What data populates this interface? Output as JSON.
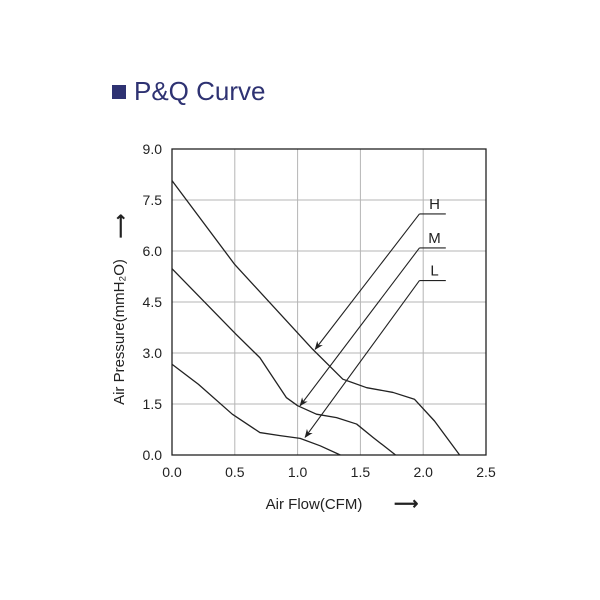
{
  "title": "P&Q Curve",
  "colors": {
    "title": "#2e3272",
    "grid": "#b5b5b5",
    "line": "#222222"
  },
  "chart_data": {
    "type": "line",
    "title": "P&Q Curve",
    "xlabel": "Air Flow(CFM)",
    "ylabel": "Air Pressure(mmH₂O)",
    "xlim": [
      0,
      2.5
    ],
    "ylim": [
      0,
      9
    ],
    "xticks": [
      "0.0",
      "0.5",
      "1.0",
      "1.5",
      "2.0",
      "2.5"
    ],
    "yticks": [
      "0.0",
      "1.5",
      "3.0",
      "4.5",
      "6.0",
      "7.5",
      "9.0"
    ],
    "grid": true,
    "series": [
      {
        "name": "H",
        "x": [
          0,
          0.5,
          1.12,
          1.36,
          1.55,
          1.76,
          1.93,
          2.09,
          2.29
        ],
        "y": [
          8.07,
          5.6,
          3.11,
          2.23,
          1.98,
          1.84,
          1.64,
          1.0,
          0
        ]
      },
      {
        "name": "M",
        "x": [
          0,
          0.51,
          0.7,
          0.91,
          1.0,
          1.15,
          1.31,
          1.47,
          1.6,
          1.78
        ],
        "y": [
          5.48,
          3.55,
          2.86,
          1.69,
          1.45,
          1.2,
          1.1,
          0.91,
          0.52,
          0
        ]
      },
      {
        "name": "L",
        "x": [
          0,
          0.21,
          0.48,
          0.7,
          0.86,
          1.02,
          1.18,
          1.34
        ],
        "y": [
          2.67,
          2.08,
          1.2,
          0.66,
          0.57,
          0.49,
          0.27,
          0
        ]
      }
    ],
    "annotations": [
      {
        "text": "H",
        "from": [
          1.97,
          7.09
        ],
        "to": [
          1.14,
          3.11
        ]
      },
      {
        "text": "M",
        "from": [
          1.97,
          6.09
        ],
        "to": [
          1.02,
          1.45
        ]
      },
      {
        "text": "L",
        "from": [
          1.97,
          5.13
        ],
        "to": [
          1.06,
          0.52
        ]
      }
    ]
  }
}
